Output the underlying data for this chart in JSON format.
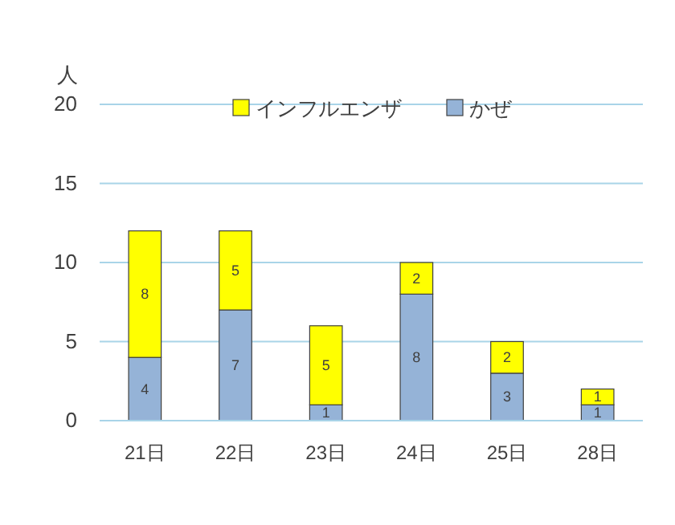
{
  "chart_data": {
    "type": "bar",
    "ylabel": "人",
    "stacked": true,
    "data_labels": true,
    "grid": "y",
    "legend": "top",
    "categories": [
      "21日",
      "22日",
      "23日",
      "24日",
      "25日",
      "28日"
    ],
    "ylim": [
      0,
      20
    ],
    "yticks": [
      0,
      5,
      10,
      15,
      20
    ],
    "series": [
      {
        "name": "かぜ",
        "color": "#95b3d7",
        "values": [
          4,
          7,
          1,
          8,
          3,
          1
        ]
      },
      {
        "name": "インフルエンザ",
        "color": "#ffff00",
        "values": [
          8,
          5,
          5,
          2,
          2,
          1
        ]
      }
    ]
  }
}
